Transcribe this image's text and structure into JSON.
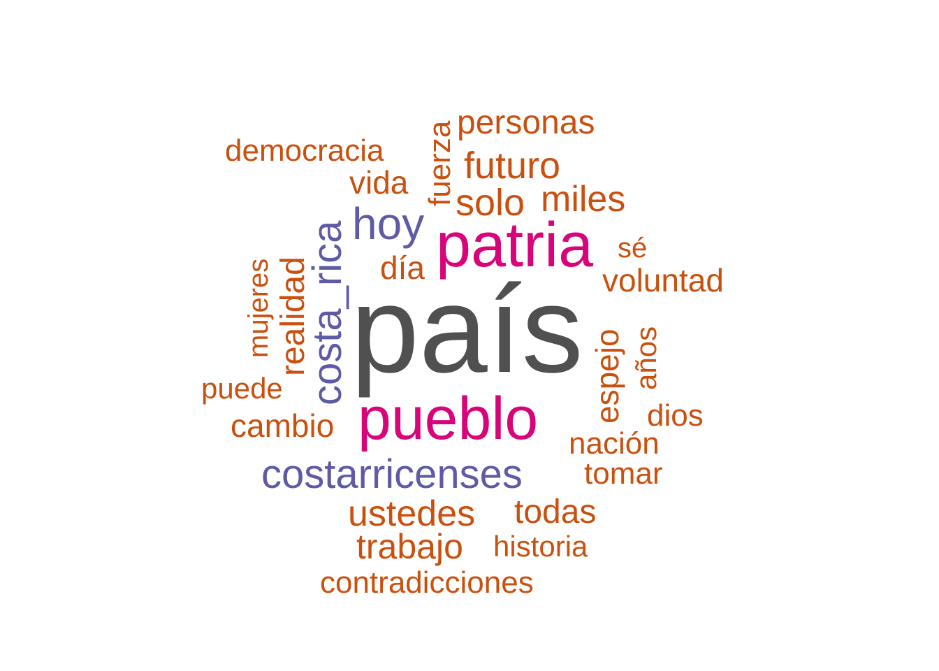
{
  "colors": {
    "primary": "#505050",
    "magenta": "#d8047a",
    "purple": "#5e5aa6",
    "orange": "#c9500e"
  },
  "words": [
    {
      "id": "pais",
      "text": "país",
      "color": "primary"
    },
    {
      "id": "patria",
      "text": "patria",
      "color": "magenta"
    },
    {
      "id": "pueblo",
      "text": "pueblo",
      "color": "magenta"
    },
    {
      "id": "costa_rica",
      "text": "costa_rica",
      "color": "purple"
    },
    {
      "id": "hoy",
      "text": "hoy",
      "color": "purple"
    },
    {
      "id": "costarricenses",
      "text": "costarricenses",
      "color": "purple"
    },
    {
      "id": "personas",
      "text": "personas",
      "color": "orange"
    },
    {
      "id": "democracia",
      "text": "democracia",
      "color": "orange"
    },
    {
      "id": "fuerza",
      "text": "fuerza",
      "color": "orange"
    },
    {
      "id": "futuro",
      "text": "futuro",
      "color": "orange"
    },
    {
      "id": "vida",
      "text": "vida",
      "color": "orange"
    },
    {
      "id": "solo",
      "text": "solo",
      "color": "orange"
    },
    {
      "id": "miles",
      "text": "miles",
      "color": "orange"
    },
    {
      "id": "se",
      "text": "sé",
      "color": "orange"
    },
    {
      "id": "voluntad",
      "text": "voluntad",
      "color": "orange"
    },
    {
      "id": "dia",
      "text": "día",
      "color": "orange"
    },
    {
      "id": "mujeres",
      "text": "mujeres",
      "color": "orange"
    },
    {
      "id": "realidad",
      "text": "realidad",
      "color": "orange"
    },
    {
      "id": "espejo",
      "text": "espejo",
      "color": "orange"
    },
    {
      "id": "anos",
      "text": "años",
      "color": "orange"
    },
    {
      "id": "puede",
      "text": "puede",
      "color": "orange"
    },
    {
      "id": "cambio",
      "text": "cambio",
      "color": "orange"
    },
    {
      "id": "dios",
      "text": "dios",
      "color": "orange"
    },
    {
      "id": "nacion",
      "text": "nación",
      "color": "orange"
    },
    {
      "id": "tomar",
      "text": "tomar",
      "color": "orange"
    },
    {
      "id": "ustedes",
      "text": "ustedes",
      "color": "orange"
    },
    {
      "id": "todas",
      "text": "todas",
      "color": "orange"
    },
    {
      "id": "trabajo",
      "text": "trabajo",
      "color": "orange"
    },
    {
      "id": "historia",
      "text": "historia",
      "color": "orange"
    },
    {
      "id": "contradicciones",
      "text": "contradicciones",
      "color": "orange"
    }
  ]
}
